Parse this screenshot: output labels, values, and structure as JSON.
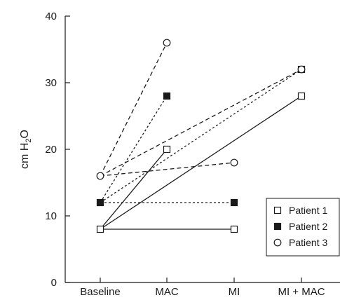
{
  "chart_data": {
    "type": "line",
    "categories": [
      "Baseline",
      "MAC",
      "MI",
      "MI + MAC"
    ],
    "ylabel": "cm H2O",
    "ylabel_parts": {
      "base": "cm H",
      "sub": "2",
      "tail": "O"
    },
    "ylim": [
      0,
      40
    ],
    "yticks": [
      0,
      10,
      20,
      30,
      40
    ],
    "grid": false,
    "legend_position": "right",
    "series": [
      {
        "name": "Patient 1",
        "marker": "open-square",
        "pairs": [
          {
            "x": [
              "Baseline",
              "MAC"
            ],
            "y": [
              8,
              20
            ],
            "style": "solid"
          },
          {
            "x": [
              "Baseline",
              "MI"
            ],
            "y": [
              8,
              8
            ],
            "style": "solid"
          },
          {
            "x": [
              "Baseline",
              "MI + MAC"
            ],
            "y": [
              8,
              28
            ],
            "style": "solid"
          }
        ]
      },
      {
        "name": "Patient 2",
        "marker": "filled-square",
        "pairs": [
          {
            "x": [
              "Baseline",
              "MAC"
            ],
            "y": [
              12,
              28
            ],
            "style": "dotted"
          },
          {
            "x": [
              "Baseline",
              "MI"
            ],
            "y": [
              12,
              12
            ],
            "style": "dotted"
          },
          {
            "x": [
              "Baseline",
              "MI + MAC"
            ],
            "y": [
              12,
              32
            ],
            "style": "dotted"
          }
        ]
      },
      {
        "name": "Patient 3",
        "marker": "open-circle",
        "pairs": [
          {
            "x": [
              "Baseline",
              "MAC"
            ],
            "y": [
              16,
              36
            ],
            "style": "dashed"
          },
          {
            "x": [
              "Baseline",
              "MI"
            ],
            "y": [
              16,
              18
            ],
            "style": "dashed"
          },
          {
            "x": [
              "Baseline",
              "MI + MAC"
            ],
            "y": [
              16,
              32
            ],
            "style": "dashed"
          }
        ]
      }
    ],
    "colors": {
      "ink": "#1a1a1a",
      "background": "#ffffff"
    }
  }
}
